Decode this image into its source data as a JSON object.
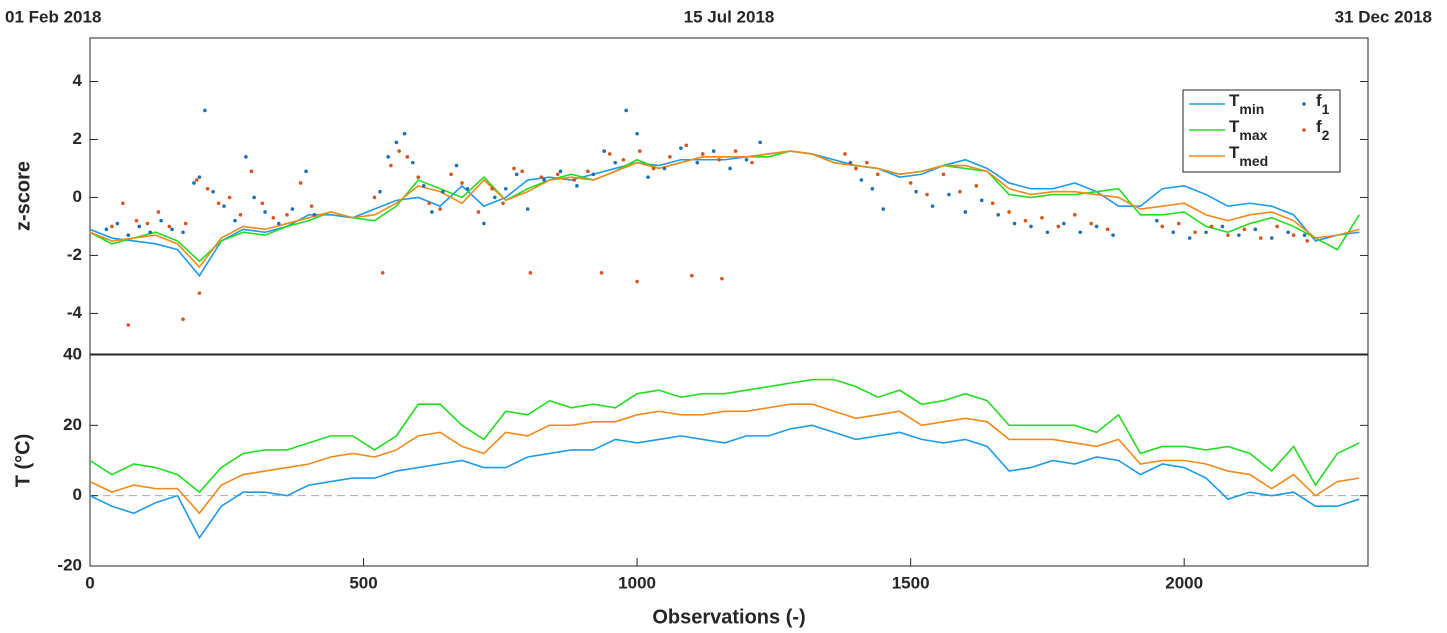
{
  "chart_data": [
    {
      "type": "line",
      "date_labels": [
        "01 Feb 2018",
        "15 Jul 2018",
        "31 Dec 2018"
      ],
      "ylabel": "z-score",
      "xlim": [
        0,
        2336
      ],
      "ylim": [
        -5.4,
        5.5
      ],
      "yticks": [
        -4,
        -2,
        0,
        2,
        4
      ],
      "legend": "upper right",
      "x": [
        0,
        40,
        80,
        120,
        160,
        200,
        240,
        280,
        320,
        360,
        400,
        440,
        480,
        520,
        560,
        600,
        640,
        680,
        720,
        760,
        800,
        840,
        880,
        920,
        960,
        1000,
        1040,
        1080,
        1120,
        1160,
        1200,
        1240,
        1280,
        1320,
        1360,
        1400,
        1440,
        1480,
        1520,
        1560,
        1600,
        1640,
        1680,
        1720,
        1760,
        1800,
        1840,
        1880,
        1920,
        1960,
        2000,
        2040,
        2080,
        2120,
        2160,
        2200,
        2240,
        2280,
        2320
      ],
      "series": [
        {
          "name": "T",
          "subscript": "min",
          "type": "line",
          "color": "#1f9be8",
          "values": [
            -1.1,
            -1.4,
            -1.5,
            -1.6,
            -1.8,
            -2.7,
            -1.5,
            -1.1,
            -1.2,
            -1.0,
            -0.6,
            -0.6,
            -0.7,
            -0.4,
            -0.1,
            0.0,
            -0.3,
            0.4,
            -0.3,
            0.0,
            0.6,
            0.7,
            0.6,
            0.8,
            1.0,
            1.2,
            1.1,
            1.3,
            1.3,
            1.3,
            1.4,
            1.5,
            1.6,
            1.5,
            1.3,
            1.1,
            1.0,
            0.7,
            0.8,
            1.1,
            1.3,
            1.0,
            0.5,
            0.3,
            0.3,
            0.5,
            0.2,
            -0.3,
            -0.3,
            0.3,
            0.4,
            0.1,
            -0.3,
            -0.2,
            -0.3,
            -0.6,
            -1.5,
            -1.3,
            -1.2
          ]
        },
        {
          "name": "T",
          "subscript": "max",
          "type": "line",
          "color": "#22dd22",
          "values": [
            -1.2,
            -1.6,
            -1.4,
            -1.2,
            -1.5,
            -2.2,
            -1.5,
            -1.2,
            -1.3,
            -1.0,
            -0.8,
            -0.5,
            -0.7,
            -0.8,
            -0.3,
            0.6,
            0.3,
            0.0,
            0.7,
            -0.1,
            0.3,
            0.6,
            0.8,
            0.6,
            0.9,
            1.3,
            1.0,
            1.2,
            1.4,
            1.4,
            1.4,
            1.4,
            1.6,
            1.5,
            1.2,
            1.1,
            1.0,
            0.8,
            0.9,
            1.1,
            1.0,
            0.9,
            0.1,
            0.0,
            0.1,
            0.1,
            0.2,
            0.3,
            -0.6,
            -0.6,
            -0.5,
            -1.0,
            -1.2,
            -0.9,
            -0.7,
            -1.0,
            -1.4,
            -1.8,
            -0.6
          ]
        },
        {
          "name": "T",
          "subscript": "med",
          "type": "line",
          "color": "#f08a1c",
          "values": [
            -1.2,
            -1.5,
            -1.4,
            -1.3,
            -1.6,
            -2.4,
            -1.4,
            -1.0,
            -1.1,
            -0.9,
            -0.7,
            -0.5,
            -0.7,
            -0.6,
            -0.2,
            0.4,
            0.2,
            -0.2,
            0.6,
            -0.1,
            0.2,
            0.6,
            0.7,
            0.6,
            0.9,
            1.2,
            1.0,
            1.2,
            1.4,
            1.4,
            1.4,
            1.5,
            1.6,
            1.5,
            1.2,
            1.1,
            1.0,
            0.8,
            0.9,
            1.1,
            1.1,
            0.9,
            0.3,
            0.1,
            0.2,
            0.2,
            0.1,
            0.0,
            -0.4,
            -0.3,
            -0.2,
            -0.6,
            -0.8,
            -0.6,
            -0.5,
            -0.8,
            -1.4,
            -1.3,
            -1.1
          ]
        },
        {
          "name": "f",
          "subscript": "1",
          "type": "scatter",
          "color": "#1f6fb4",
          "x": [
            30,
            50,
            70,
            90,
            110,
            130,
            150,
            170,
            190,
            200,
            210,
            225,
            245,
            265,
            285,
            300,
            320,
            345,
            370,
            395,
            410,
            530,
            545,
            560,
            575,
            590,
            610,
            625,
            645,
            670,
            690,
            720,
            740,
            760,
            780,
            800,
            830,
            860,
            890,
            920,
            940,
            960,
            980,
            1000,
            1020,
            1050,
            1080,
            1110,
            1140,
            1170,
            1200,
            1225,
            1390,
            1410,
            1430,
            1450,
            1510,
            1540,
            1570,
            1600,
            1630,
            1660,
            1690,
            1720,
            1750,
            1780,
            1810,
            1840,
            1870,
            1950,
            1980,
            2010,
            2040,
            2070,
            2100,
            2130,
            2160,
            2190,
            2220
          ],
          "values": [
            -1.1,
            -0.9,
            -1.3,
            -1.0,
            -1.2,
            -0.8,
            -1.1,
            -1.2,
            0.5,
            0.7,
            3.0,
            0.2,
            -0.3,
            -0.8,
            1.4,
            0.0,
            -0.5,
            -0.9,
            -0.4,
            0.9,
            -0.6,
            0.2,
            1.4,
            1.9,
            2.2,
            1.2,
            0.4,
            -0.5,
            0.2,
            1.1,
            0.3,
            -0.9,
            0.0,
            0.3,
            0.8,
            -0.4,
            0.6,
            0.9,
            0.4,
            0.8,
            1.6,
            1.2,
            3.0,
            2.2,
            0.7,
            1.0,
            1.7,
            1.2,
            1.6,
            1.0,
            1.3,
            1.9,
            1.2,
            0.6,
            0.3,
            -0.4,
            0.2,
            -0.3,
            0.1,
            -0.5,
            -0.1,
            -0.6,
            -0.9,
            -1.0,
            -1.2,
            -0.9,
            -1.2,
            -1.0,
            -1.3,
            -0.8,
            -1.2,
            -1.4,
            -1.2,
            -1.0,
            -1.3,
            -1.1,
            -1.4,
            -1.2,
            -1.3
          ]
        },
        {
          "name": "f",
          "subscript": "2",
          "type": "scatter",
          "color": "#d9531e",
          "x": [
            40,
            60,
            70,
            85,
            105,
            125,
            145,
            170,
            175,
            195,
            200,
            215,
            235,
            255,
            275,
            295,
            315,
            335,
            360,
            385,
            405,
            520,
            535,
            550,
            565,
            580,
            600,
            620,
            640,
            660,
            680,
            710,
            735,
            755,
            775,
            790,
            805,
            825,
            855,
            885,
            910,
            935,
            950,
            975,
            1000,
            1005,
            1030,
            1060,
            1090,
            1100,
            1120,
            1150,
            1155,
            1180,
            1210,
            1380,
            1400,
            1420,
            1440,
            1500,
            1530,
            1560,
            1590,
            1620,
            1650,
            1680,
            1710,
            1740,
            1770,
            1800,
            1830,
            1860,
            1960,
            1990,
            2020,
            2050,
            2080,
            2110,
            2140,
            2170,
            2200,
            2225
          ],
          "values": [
            -1.0,
            -0.2,
            -4.4,
            -0.8,
            -0.9,
            -0.5,
            -1.0,
            -4.2,
            -0.9,
            0.6,
            -3.3,
            0.3,
            -0.2,
            0.0,
            -0.6,
            0.9,
            -0.2,
            -0.7,
            -0.6,
            0.5,
            -0.3,
            0.0,
            -2.6,
            1.1,
            1.6,
            1.4,
            0.7,
            -0.2,
            -0.4,
            0.8,
            0.5,
            -0.5,
            0.3,
            -0.2,
            1.0,
            0.9,
            -2.6,
            0.7,
            0.8,
            0.6,
            0.9,
            -2.6,
            1.5,
            1.3,
            -2.9,
            1.6,
            1.0,
            1.4,
            1.8,
            -2.7,
            1.5,
            1.3,
            -2.8,
            1.6,
            1.2,
            1.5,
            1.0,
            1.2,
            0.8,
            0.5,
            0.1,
            0.8,
            0.2,
            0.4,
            -0.2,
            -0.5,
            -0.8,
            -0.7,
            -1.0,
            -0.6,
            -0.9,
            -1.1,
            -1.0,
            -0.9,
            -1.2,
            -1.0,
            -1.3,
            -1.1,
            -1.4,
            -1.0,
            -1.3,
            -1.5
          ]
        }
      ]
    },
    {
      "type": "line",
      "ylabel": "T (°C)",
      "xlabel": "Observations (-)",
      "xlim": [
        0,
        2336
      ],
      "ylim": [
        -20,
        40
      ],
      "yticks": [
        -20,
        0,
        20,
        40
      ],
      "xticks": [
        0,
        500,
        1000,
        1500,
        2000
      ],
      "zero_line": true,
      "x": [
        0,
        40,
        80,
        120,
        160,
        200,
        240,
        280,
        320,
        360,
        400,
        440,
        480,
        520,
        560,
        600,
        640,
        680,
        720,
        760,
        800,
        840,
        880,
        920,
        960,
        1000,
        1040,
        1080,
        1120,
        1160,
        1200,
        1240,
        1280,
        1320,
        1360,
        1400,
        1440,
        1480,
        1520,
        1560,
        1600,
        1640,
        1680,
        1720,
        1760,
        1800,
        1840,
        1880,
        1920,
        1960,
        2000,
        2040,
        2080,
        2120,
        2160,
        2200,
        2240,
        2280,
        2320
      ],
      "series": [
        {
          "color": "#1f9be8",
          "values": [
            0,
            -3,
            -5,
            -2,
            0,
            -12,
            -3,
            1,
            1,
            0,
            3,
            4,
            5,
            5,
            7,
            8,
            9,
            10,
            8,
            8,
            11,
            12,
            13,
            13,
            16,
            15,
            16,
            17,
            16,
            15,
            17,
            17,
            19,
            20,
            18,
            16,
            17,
            18,
            16,
            15,
            16,
            14,
            7,
            8,
            10,
            9,
            11,
            10,
            6,
            9,
            8,
            5,
            -1,
            1,
            0,
            1,
            -3,
            -3,
            -1
          ]
        },
        {
          "color": "#22dd22",
          "values": [
            10,
            6,
            9,
            8,
            6,
            1,
            8,
            12,
            13,
            13,
            15,
            17,
            17,
            13,
            17,
            26,
            26,
            20,
            16,
            24,
            23,
            27,
            25,
            26,
            25,
            29,
            30,
            28,
            29,
            29,
            30,
            31,
            32,
            33,
            33,
            31,
            28,
            30,
            26,
            27,
            29,
            27,
            20,
            20,
            20,
            20,
            18,
            23,
            12,
            14,
            14,
            13,
            14,
            12,
            7,
            14,
            3,
            12,
            15
          ]
        },
        {
          "color": "#f08a1c",
          "values": [
            4,
            1,
            3,
            2,
            2,
            -5,
            3,
            6,
            7,
            8,
            9,
            11,
            12,
            11,
            13,
            17,
            18,
            14,
            12,
            18,
            17,
            20,
            20,
            21,
            21,
            23,
            24,
            23,
            23,
            24,
            24,
            25,
            26,
            26,
            24,
            22,
            23,
            24,
            20,
            21,
            22,
            21,
            16,
            16,
            16,
            15,
            14,
            16,
            9,
            10,
            10,
            9,
            7,
            6,
            2,
            6,
            0,
            4,
            5
          ]
        }
      ]
    }
  ]
}
